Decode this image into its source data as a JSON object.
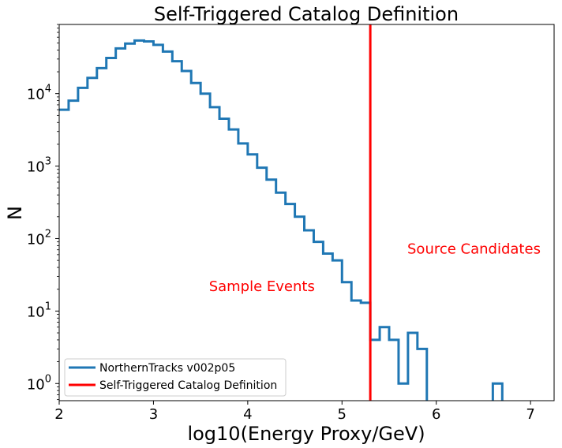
{
  "chart_data": {
    "type": "histogram",
    "title": "Self-Triggered Catalog Definition",
    "xlabel": "log10(Energy Proxy/GeV)",
    "ylabel": "N",
    "xlim": [
      2.0,
      7.25
    ],
    "ylim": [
      0.58,
      90000
    ],
    "yscale": "log",
    "x_ticks": [
      "2",
      "3",
      "4",
      "5",
      "6",
      "7"
    ],
    "y_ticks": [
      {
        "base": "10",
        "exp": "0"
      },
      {
        "base": "10",
        "exp": "1"
      },
      {
        "base": "10",
        "exp": "2"
      },
      {
        "base": "10",
        "exp": "3"
      },
      {
        "base": "10",
        "exp": "4"
      }
    ],
    "bin_width": 0.1,
    "series": [
      {
        "name": "NorthernTracks v002p05",
        "color": "#1f77b4",
        "bin_start": 2.0,
        "counts": [
          6000,
          8000,
          12000,
          16500,
          22500,
          31000,
          42000,
          49000,
          54000,
          52500,
          47000,
          38000,
          28000,
          20500,
          14000,
          10000,
          6500,
          4500,
          3200,
          2050,
          1450,
          950,
          650,
          430,
          300,
          200,
          130,
          90,
          62,
          50,
          25,
          14,
          13,
          4,
          6,
          4,
          1,
          5,
          3,
          0,
          0,
          0,
          0,
          0,
          0,
          0,
          1,
          0
        ]
      }
    ],
    "cut_line": {
      "name": "Self-Triggered Catalog Definition",
      "x": 5.3,
      "color": "#ff0000"
    },
    "annotations": [
      {
        "text": "Sample Events",
        "x": 4.15,
        "y": 22
      },
      {
        "text": "Source Candidates",
        "x": 6.4,
        "y": 72
      }
    ],
    "legend": {
      "position": "lower-left",
      "entries": [
        {
          "label": "NorthernTracks v002p05",
          "color": "#1f77b4"
        },
        {
          "label": "Self-Triggered Catalog Definition",
          "color": "#ff0000"
        }
      ]
    }
  }
}
